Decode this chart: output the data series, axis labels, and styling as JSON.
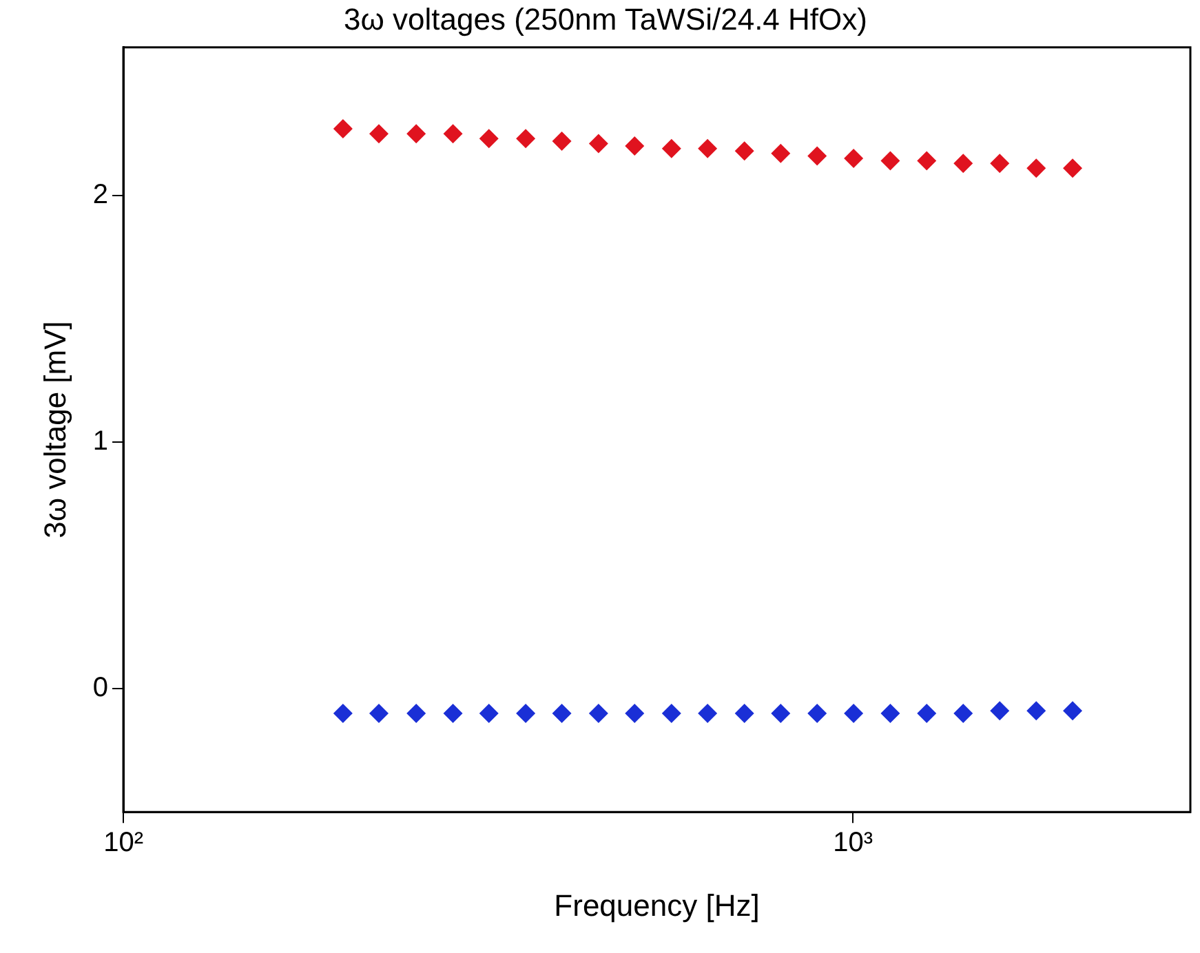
{
  "chart_data": {
    "type": "scatter",
    "title": "3ω voltages (250nm TaWSi/24.4 HfOx)",
    "xlabel": "Frequency [Hz]",
    "ylabel": "3ω voltage [mV]",
    "x": [
      200,
      224,
      252,
      283,
      317,
      356,
      399,
      448,
      502,
      564,
      632,
      710,
      796,
      893,
      1002,
      1125,
      1262,
      1416,
      1589,
      1783,
      2000
    ],
    "series": [
      {
        "color": "#e0131f",
        "values": [
          2.27,
          2.25,
          2.25,
          2.25,
          2.23,
          2.23,
          2.22,
          2.21,
          2.2,
          2.19,
          2.19,
          2.18,
          2.17,
          2.16,
          2.15,
          2.14,
          2.14,
          2.13,
          2.13,
          2.11,
          2.11
        ]
      },
      {
        "color": "#1a2fd6",
        "values": [
          -0.1,
          -0.1,
          -0.1,
          -0.1,
          -0.1,
          -0.1,
          -0.1,
          -0.1,
          -0.1,
          -0.1,
          -0.1,
          -0.1,
          -0.1,
          -0.1,
          -0.1,
          -0.1,
          -0.1,
          -0.1,
          -0.09,
          -0.09,
          -0.09
        ]
      }
    ],
    "log": "x",
    "xlim": [
      100,
      2900
    ],
    "xticks": [
      {
        "value": 100,
        "label": "10²"
      },
      {
        "value": 1000,
        "label": "10³"
      }
    ],
    "ylim": [
      -0.5,
      2.6
    ],
    "yticks": [
      0,
      1,
      2
    ],
    "grid": false,
    "legend": false,
    "marker": "diamond"
  }
}
